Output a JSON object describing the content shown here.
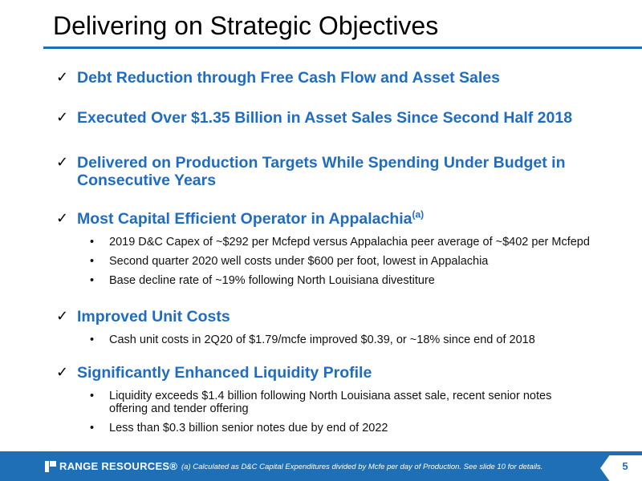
{
  "title": "Delivering on Strategic Objectives",
  "colors": {
    "accent": "#1e6fb5",
    "heading": "#1f6cc4",
    "footer_bg": "#1e6fb5"
  },
  "sections": [
    {
      "heading": "Debt Reduction through Free Cash Flow and Asset Sales",
      "bullets": []
    },
    {
      "heading": "Executed Over $1.35 Billion in Asset Sales Since Second Half 2018",
      "bullets": []
    },
    {
      "heading": "Delivered on Production Targets While Spending Under Budget in Consecutive Years",
      "bullets": []
    },
    {
      "heading": "Most Capital Efficient Operator in Appalachia",
      "sup": "(a)",
      "bullets": [
        "2019 D&C Capex of ~$292 per Mcfepd versus Appalachia peer average of ~$402 per Mcfepd",
        "Second quarter 2020 well costs under $600 per foot, lowest in Appalachia",
        "Base decline rate of ~19% following North Louisiana divestiture"
      ]
    },
    {
      "heading": "Improved Unit Costs",
      "bullets": [
        "Cash unit costs in 2Q20 of $1.79/mcfe improved $0.39, or ~18% since end of 2018"
      ]
    },
    {
      "heading": "Significantly Enhanced Liquidity Profile",
      "bullets": [
        "Liquidity exceeds $1.4 billion following North Louisiana asset sale, recent senior notes offering and tender offering",
        "Less than $0.3 billion senior notes due by end of 2022"
      ]
    }
  ],
  "footer": {
    "logo_text": "RANGE RESOURCES®",
    "footnote": "(a) Calculated as D&C Capital Expenditures divided by Mcfe per day of Production. See slide 10 for details.",
    "page_number": "5"
  },
  "icons": {
    "check": "check-icon",
    "logo": "range-resources-logo-icon"
  }
}
